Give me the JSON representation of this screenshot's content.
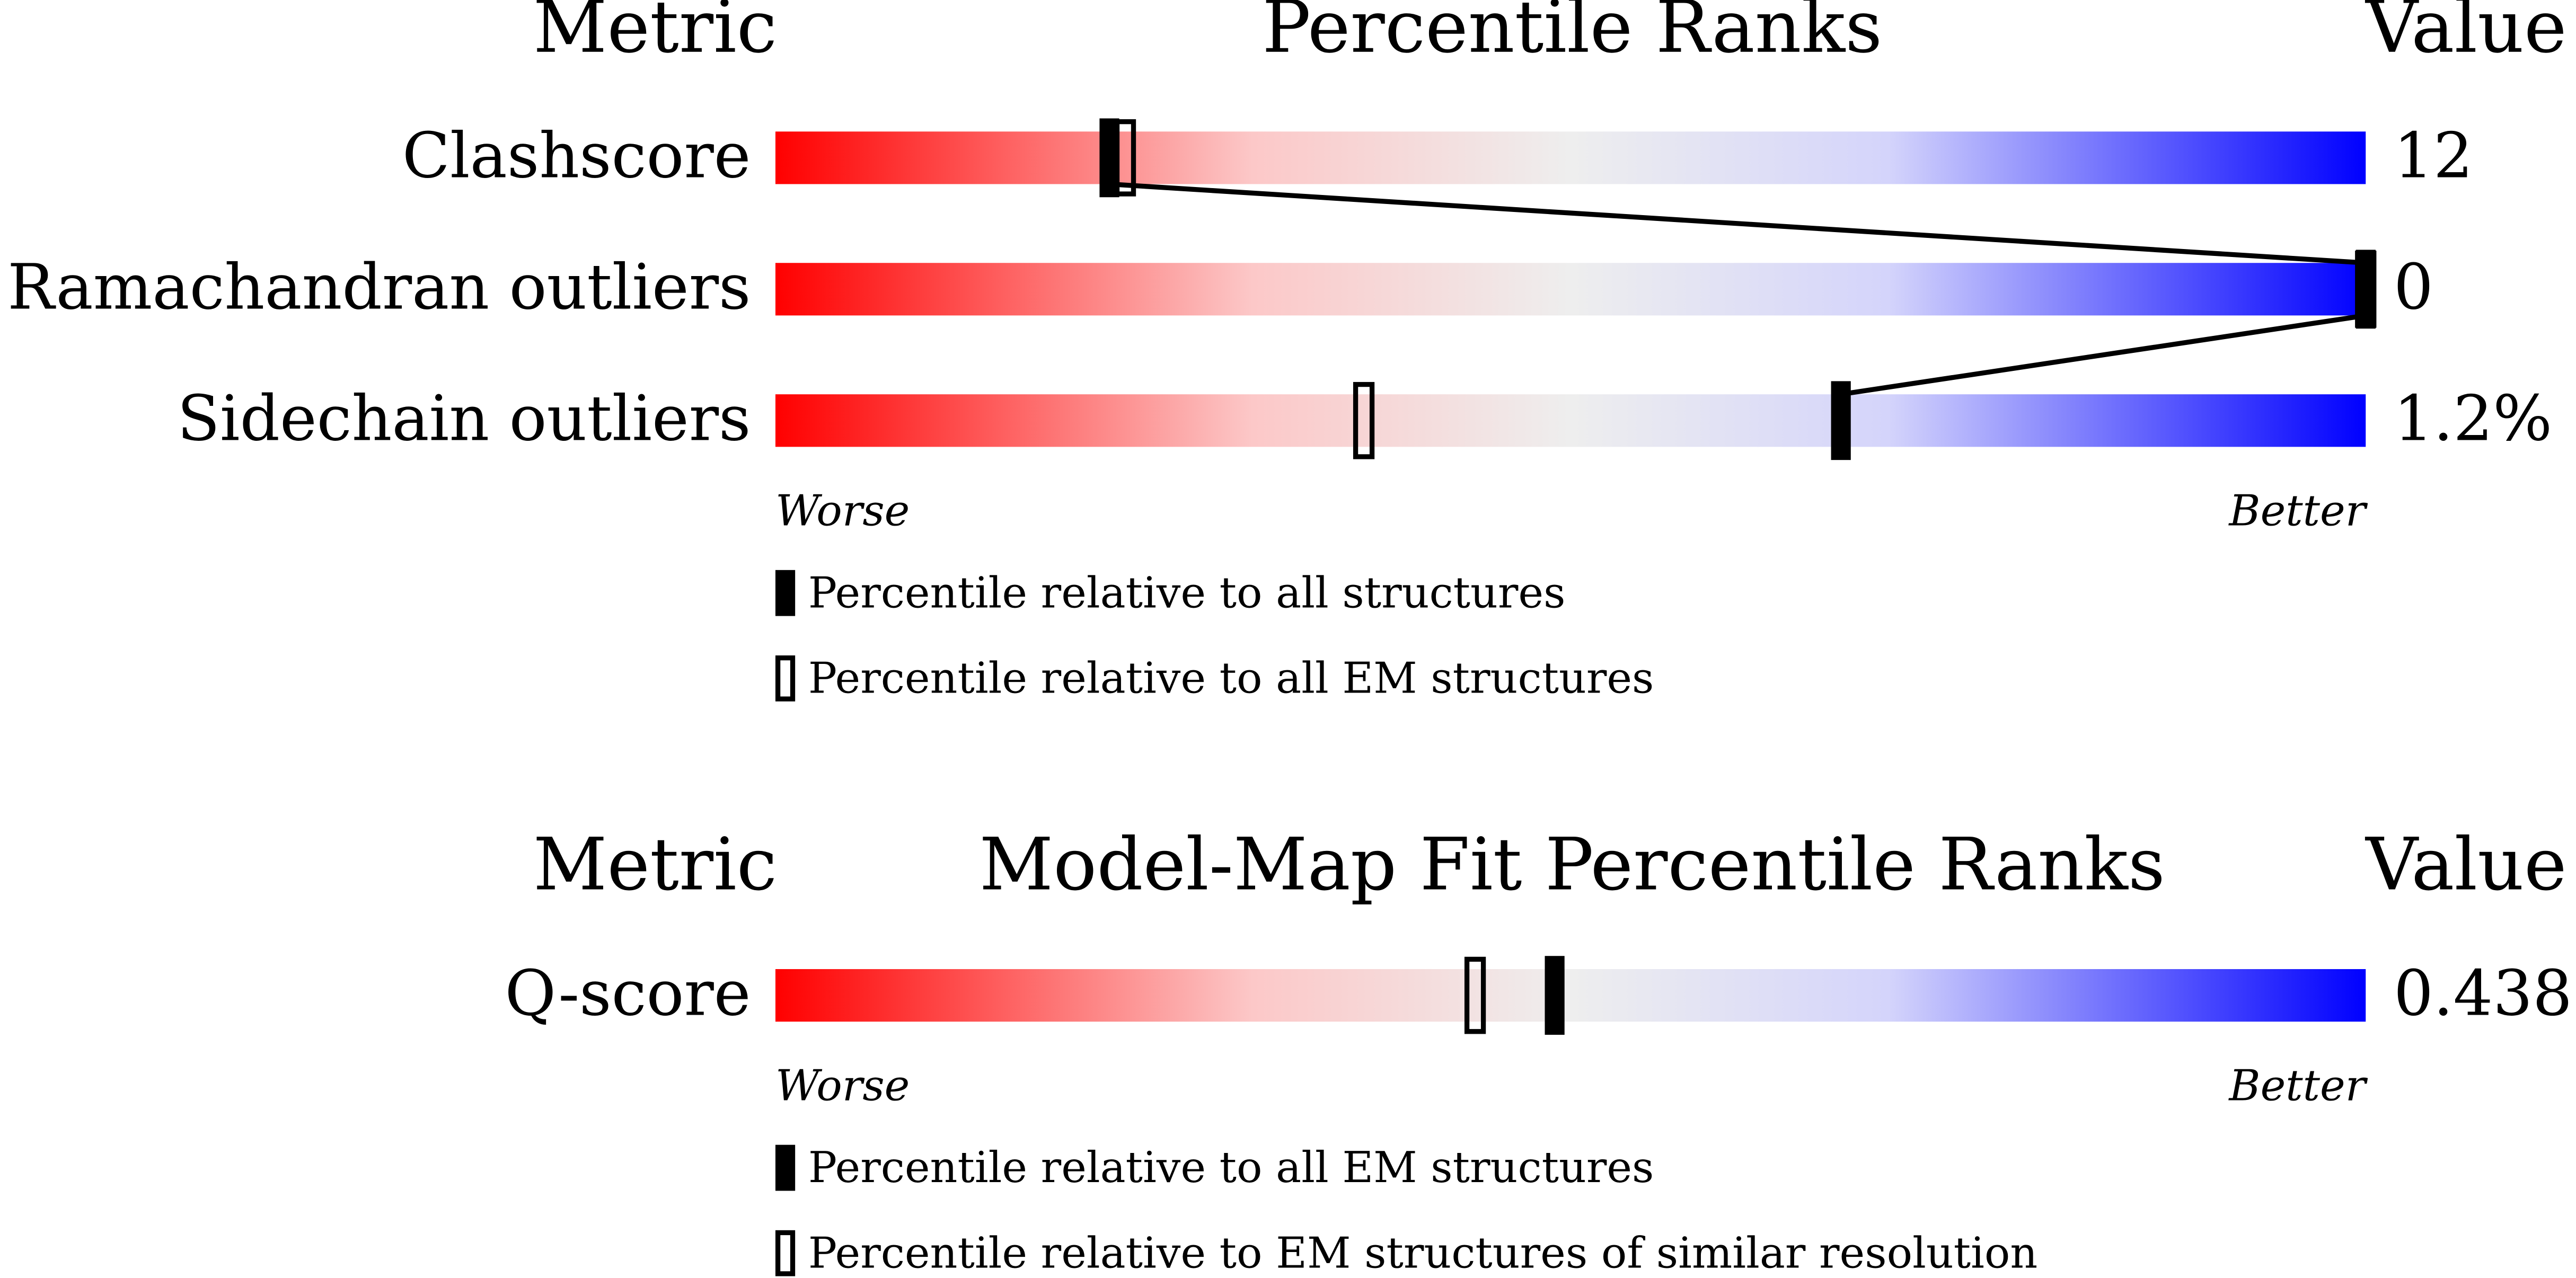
{
  "chart_data": [
    {
      "type": "percentile-slider",
      "header": {
        "metric": "Metric",
        "title": "Percentile Ranks",
        "value": "Value"
      },
      "xlim": [
        0,
        100
      ],
      "rows": [
        {
          "metric": "Clashscore",
          "value": "12",
          "percentiles": [
            21,
            22
          ]
        },
        {
          "metric": "Ramachandran outliers",
          "value": "0",
          "percentiles": [
            100,
            100
          ]
        },
        {
          "metric": "Sidechain outliers",
          "value": "1.2%",
          "percentiles": [
            67,
            37
          ]
        }
      ],
      "series": [
        {
          "name": "Percentile relative to all structures",
          "marker": "filled",
          "color": "#000000"
        },
        {
          "name": "Percentile relative to all EM structures",
          "marker": "open",
          "color": "#000000"
        }
      ],
      "axis_labels": {
        "worse": "Worse",
        "better": "Better"
      }
    },
    {
      "type": "percentile-slider",
      "header": {
        "metric": "Metric",
        "title": "Model-Map Fit Percentile Ranks",
        "value": "Value"
      },
      "xlim": [
        0,
        100
      ],
      "rows": [
        {
          "metric": "Q-score",
          "value": "0.438",
          "percentiles": [
            49,
            44
          ]
        }
      ],
      "series": [
        {
          "name": "Percentile relative to all EM structures",
          "marker": "filled",
          "color": "#000000"
        },
        {
          "name": "Percentile relative to EM structures of similar resolution",
          "marker": "open",
          "color": "#000000"
        }
      ],
      "axis_labels": {
        "worse": "Worse",
        "better": "Better"
      }
    }
  ]
}
